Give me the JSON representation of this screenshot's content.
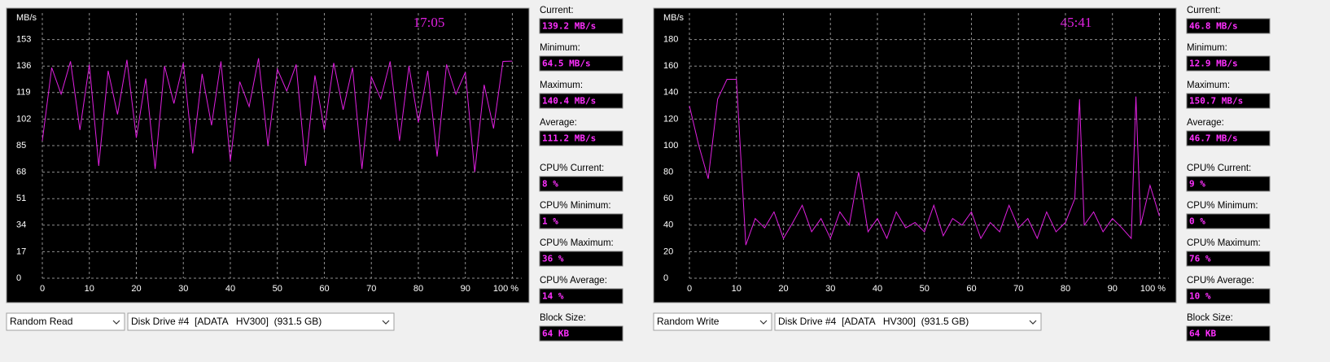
{
  "chart_data": [
    {
      "type": "line",
      "unit_label": "MB/s",
      "time": "17:05",
      "x": [
        0,
        2,
        4,
        6,
        8,
        10,
        12,
        14,
        16,
        18,
        20,
        22,
        24,
        26,
        28,
        30,
        32,
        34,
        36,
        38,
        40,
        42,
        44,
        46,
        48,
        50,
        52,
        54,
        56,
        58,
        60,
        62,
        64,
        66,
        68,
        70,
        72,
        74,
        76,
        78,
        80,
        82,
        84,
        86,
        88,
        90,
        92,
        94,
        96,
        98,
        100
      ],
      "series": [
        {
          "color": "#e020e0",
          "values": [
            88,
            135,
            118,
            139,
            95,
            137,
            72,
            133,
            105,
            140,
            90,
            128,
            70,
            136,
            112,
            138,
            80,
            131,
            98,
            139,
            75,
            126,
            110,
            141,
            85,
            134,
            120,
            137,
            72,
            130,
            95,
            138,
            108,
            135,
            70,
            129,
            115,
            139,
            88,
            136,
            100,
            133,
            78,
            137,
            118,
            132,
            68,
            124,
            96,
            139,
            139.2
          ]
        }
      ],
      "xlim": [
        0,
        102
      ],
      "ylim": [
        0,
        170
      ],
      "xticks": [
        0,
        10,
        20,
        30,
        40,
        50,
        60,
        70,
        80,
        90,
        {
          "value": 100,
          "label": "100 %"
        }
      ],
      "yticks": [
        0,
        17,
        34,
        51,
        68,
        85,
        102,
        119,
        136,
        153
      ],
      "grid": true
    },
    {
      "type": "line",
      "unit_label": "MB/s",
      "time": "45:41",
      "x": [
        0,
        2,
        4,
        6,
        8,
        10,
        12,
        14,
        16,
        18,
        20,
        22,
        24,
        26,
        28,
        30,
        32,
        34,
        36,
        38,
        40,
        42,
        44,
        46,
        48,
        50,
        52,
        54,
        56,
        58,
        60,
        62,
        64,
        66,
        68,
        70,
        72,
        74,
        76,
        78,
        80,
        82,
        83,
        84,
        86,
        88,
        90,
        92,
        94,
        95,
        96,
        98,
        100
      ],
      "series": [
        {
          "color": "#e020e0",
          "values": [
            130,
            100,
            75,
            135,
            150,
            150,
            25,
            45,
            38,
            50,
            30,
            42,
            55,
            35,
            45,
            30,
            50,
            40,
            80,
            35,
            45,
            30,
            50,
            38,
            42,
            35,
            55,
            32,
            45,
            40,
            50,
            30,
            42,
            35,
            55,
            38,
            45,
            30,
            50,
            35,
            42,
            60,
            135,
            40,
            50,
            35,
            45,
            38,
            30,
            137,
            40,
            70,
            46.8
          ]
        }
      ],
      "xlim": [
        0,
        102
      ],
      "ylim": [
        0,
        200
      ],
      "xticks": [
        0,
        10,
        20,
        30,
        40,
        50,
        60,
        70,
        80,
        90,
        {
          "value": 100,
          "label": "100 %"
        }
      ],
      "yticks": [
        0,
        20,
        40,
        60,
        80,
        100,
        120,
        140,
        160,
        180
      ],
      "grid": true
    }
  ],
  "panels": [
    {
      "test": "Random Read",
      "drive": "Disk Drive #4  [ADATA   HV300]  (931.5 GB)",
      "stats": [
        {
          "label": "Current:",
          "value": "139.2 MB/s"
        },
        {
          "label": "Minimum:",
          "value": "64.5 MB/s"
        },
        {
          "label": "Maximum:",
          "value": "140.4 MB/s"
        },
        {
          "label": "Average:",
          "value": "111.2 MB/s"
        },
        {
          "label": "CPU% Current:",
          "value": "8 %"
        },
        {
          "label": "CPU% Minimum:",
          "value": "1 %"
        },
        {
          "label": "CPU% Maximum:",
          "value": "36 %"
        },
        {
          "label": "CPU% Average:",
          "value": "14 %"
        },
        {
          "label": "Block Size:",
          "value": "64 KB"
        }
      ]
    },
    {
      "test": "Random Write",
      "drive": "Disk Drive #4  [ADATA   HV300]  (931.5 GB)",
      "stats": [
        {
          "label": "Current:",
          "value": "46.8 MB/s"
        },
        {
          "label": "Minimum:",
          "value": "12.9 MB/s"
        },
        {
          "label": "Maximum:",
          "value": "150.7 MB/s"
        },
        {
          "label": "Average:",
          "value": "46.7 MB/s"
        },
        {
          "label": "CPU% Current:",
          "value": "9 %"
        },
        {
          "label": "CPU% Minimum:",
          "value": "0 %"
        },
        {
          "label": "CPU% Maximum:",
          "value": "76 %"
        },
        {
          "label": "CPU% Average:",
          "value": "10 %"
        },
        {
          "label": "Block Size:",
          "value": "64 KB"
        }
      ]
    }
  ]
}
